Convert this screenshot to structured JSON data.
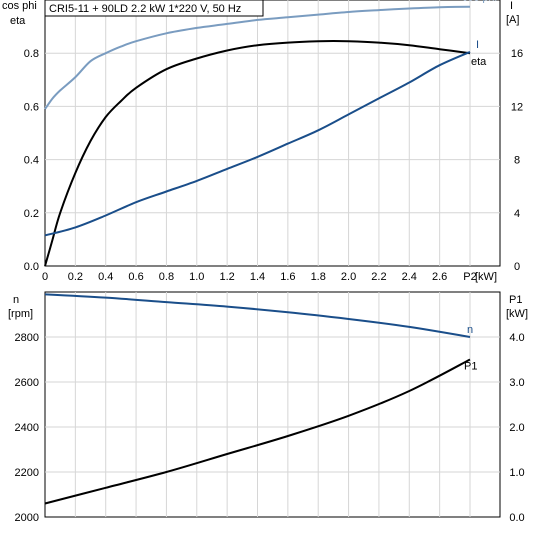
{
  "title": "CRI5-11 + 90LD   2.2 kW   1*220 V, 50 Hz",
  "chart_data": [
    {
      "type": "line",
      "x_tick_labels": [
        "0",
        "0.2",
        "0.4",
        "0.6",
        "0.8",
        "1.0",
        "1.2",
        "1.4",
        "1.6",
        "1.8",
        "2.0",
        "2.2",
        "2.4",
        "2.6",
        "P2"
      ],
      "x_unit": "[kW]",
      "xlim": [
        0,
        2.8
      ],
      "left_axis": {
        "label_line1": "cos phi",
        "label_line2": "eta",
        "ylim": [
          0,
          1.0
        ],
        "ticks": [
          0,
          0.2,
          0.4,
          0.6,
          0.8
        ],
        "tick_labels": [
          "0.0",
          "0.2",
          "0.4",
          "0.6",
          "0.8"
        ]
      },
      "right_axis": {
        "label_line1": "I",
        "label_line2": "[A]",
        "ylim": [
          0,
          20
        ],
        "ticks": [
          0,
          4,
          8,
          12,
          16
        ],
        "tick_labels": [
          "0",
          "4",
          "8",
          "12",
          "16"
        ]
      },
      "grid": true,
      "series": [
        {
          "name": "cos phi",
          "axis": "left",
          "color": "#7a9cc0",
          "x": [
            0,
            0.05,
            0.1,
            0.2,
            0.3,
            0.4,
            0.5,
            0.6,
            0.8,
            1.0,
            1.2,
            1.4,
            1.6,
            1.8,
            2.0,
            2.2,
            2.4,
            2.6,
            2.8
          ],
          "y": [
            0.59,
            0.63,
            0.66,
            0.71,
            0.77,
            0.8,
            0.825,
            0.845,
            0.875,
            0.895,
            0.91,
            0.925,
            0.935,
            0.945,
            0.955,
            0.962,
            0.968,
            0.973,
            0.975
          ]
        },
        {
          "name": "eta",
          "axis": "left",
          "color": "#000000",
          "x": [
            0,
            0.05,
            0.1,
            0.2,
            0.3,
            0.4,
            0.5,
            0.6,
            0.8,
            1.0,
            1.2,
            1.4,
            1.6,
            1.8,
            2.0,
            2.2,
            2.4,
            2.6,
            2.8
          ],
          "y": [
            0,
            0.1,
            0.2,
            0.35,
            0.47,
            0.56,
            0.62,
            0.67,
            0.74,
            0.78,
            0.81,
            0.83,
            0.84,
            0.845,
            0.845,
            0.84,
            0.83,
            0.815,
            0.8
          ]
        },
        {
          "name": "I",
          "axis": "right",
          "color": "#1a4e8a",
          "x": [
            0,
            0.2,
            0.4,
            0.6,
            0.8,
            1.0,
            1.2,
            1.4,
            1.6,
            1.8,
            2.0,
            2.2,
            2.4,
            2.6,
            2.8
          ],
          "y": [
            2.3,
            2.9,
            3.8,
            4.8,
            5.6,
            6.4,
            7.3,
            8.2,
            9.2,
            10.2,
            11.4,
            12.6,
            13.8,
            15.1,
            16.1
          ]
        }
      ]
    },
    {
      "type": "line",
      "xlim": [
        0,
        2.8
      ],
      "left_axis": {
        "label_line1": "n",
        "label_line2": "[rpm]",
        "ylim": [
          2000,
          3000
        ],
        "ticks": [
          2000,
          2200,
          2400,
          2600,
          2800
        ],
        "tick_labels": [
          "2000",
          "2200",
          "2400",
          "2600",
          "2800"
        ]
      },
      "right_axis": {
        "label_line1": "P1",
        "label_line2": "[kW]",
        "ylim": [
          0,
          5.0
        ],
        "ticks": [
          0,
          1,
          2,
          3,
          4
        ],
        "tick_labels": [
          "0.0",
          "1.0",
          "2.0",
          "3.0",
          "4.0"
        ]
      },
      "grid": true,
      "series": [
        {
          "name": "n",
          "axis": "left",
          "color": "#1a4e8a",
          "x": [
            0,
            0.4,
            0.8,
            1.2,
            1.6,
            2.0,
            2.4,
            2.8
          ],
          "y": [
            2990,
            2975,
            2955,
            2935,
            2910,
            2880,
            2845,
            2800
          ]
        },
        {
          "name": "P1",
          "axis": "right",
          "color": "#000000",
          "x": [
            0,
            0.4,
            0.8,
            1.2,
            1.6,
            2.0,
            2.4,
            2.8
          ],
          "y": [
            0.3,
            0.65,
            1.0,
            1.4,
            1.8,
            2.25,
            2.8,
            3.5
          ]
        }
      ]
    }
  ]
}
